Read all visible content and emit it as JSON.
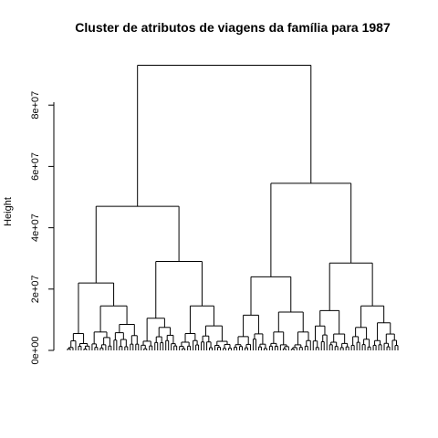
{
  "chart_data": {
    "type": "dendrogram",
    "title": "Cluster de atributos de viagens da família para 1987",
    "ylabel": "Height",
    "ylim": [
      0,
      92000000
    ],
    "y_ticks": [
      {
        "value": 0,
        "label": "0e+00"
      },
      {
        "value": 20000000,
        "label": "2e+07"
      },
      {
        "value": 40000000,
        "label": "4e+07"
      },
      {
        "value": 60000000,
        "label": "6e+07"
      },
      {
        "value": 80000000,
        "label": "8e+07"
      }
    ],
    "tree": {
      "h": 93000000,
      "c": [
        {
          "h": 47000000,
          "c": [
            {
              "h": 22000000,
              "c": [
                {
                  "h": 5500000,
                  "n": 9
                },
                {
                  "h": 14500000,
                  "c": [
                    {
                      "h": 6000000,
                      "n": 8
                    },
                    {
                      "h": 8500000,
                      "n": 10
                    }
                  ]
                }
              ]
            },
            {
              "h": 29000000,
              "c": [
                {
                  "h": 10500000,
                  "c": [
                    {
                      "h": 3000000,
                      "n": 5
                    },
                    {
                      "h": 7500000,
                      "n": 9
                    }
                  ]
                },
                {
                  "h": 14500000,
                  "c": [
                    {
                      "h": 5500000,
                      "n": 8
                    },
                    {
                      "h": 8000000,
                      "n": 12
                    }
                  ]
                }
              ]
            }
          ]
        },
        {
          "h": 54500000,
          "c": [
            {
              "h": 24000000,
              "c": [
                {
                  "h": 11500000,
                  "n": 13
                },
                {
                  "h": 12500000,
                  "c": [
                    {
                      "h": 6000000,
                      "n": 8
                    },
                    {
                      "h": 6000000,
                      "n": 8
                    }
                  ]
                }
              ]
            },
            {
              "h": 28500000,
              "c": [
                {
                  "h": 13000000,
                  "n": 14
                },
                {
                  "h": 14500000,
                  "c": [
                    {
                      "h": 7500000,
                      "n": 8
                    },
                    {
                      "h": 9000000,
                      "n": 10
                    }
                  ]
                }
              ]
            }
          ]
        }
      ]
    }
  }
}
